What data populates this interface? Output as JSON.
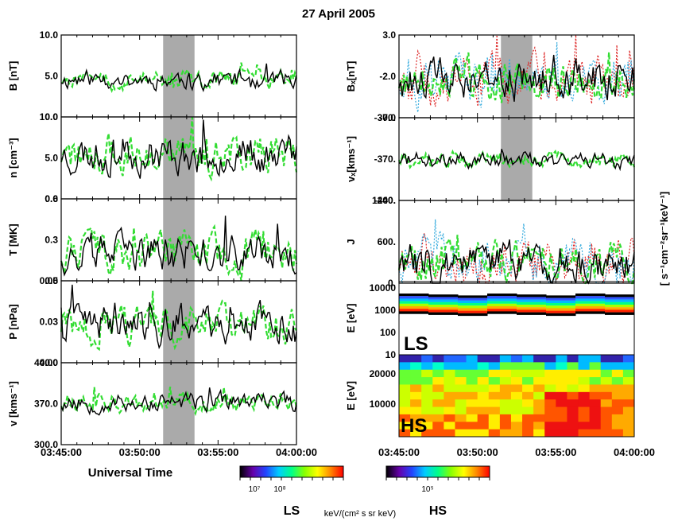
{
  "title": "27 April 2005",
  "time_ticks": [
    "03:45:00",
    "03:50:00",
    "03:55:00",
    "04:00:00"
  ],
  "xlabel": "Universal Time",
  "shade_range": [
    "03:51:30",
    "03:53:30"
  ],
  "left_panels": [
    {
      "ylabel": "B [nT]",
      "ticks": [
        "10.0",
        "5.0",
        "0.0"
      ],
      "ylim": [
        0,
        10
      ],
      "base": 4.6,
      "amp": 1.0,
      "seed": 11
    },
    {
      "ylabel": "n [cm⁻³]",
      "ticks": [
        "10.0",
        "5.0",
        "0.0"
      ],
      "ylim": [
        0,
        10
      ],
      "base": 5.4,
      "amp": 2.0,
      "seed": 23
    },
    {
      "ylabel": "T [MK]",
      "ticks": [
        "0.6",
        "0.3",
        "0.0"
      ],
      "ylim": [
        0,
        0.6
      ],
      "base": 0.2,
      "amp": 0.12,
      "seed": 37
    },
    {
      "ylabel": "P [nPa]",
      "ticks": [
        "0.05",
        "0.03",
        "0.00"
      ],
      "ylim": [
        -0.01,
        0.05
      ],
      "base": 0.018,
      "amp": 0.012,
      "seed": 41
    },
    {
      "ylabel": "v [kms⁻¹]",
      "ticks": [
        "440.0",
        "370.0",
        "300.0"
      ],
      "ylim": [
        300,
        440
      ],
      "base": 372,
      "amp": 14,
      "seed": 53
    }
  ],
  "right_panels": [
    {
      "ylabel": "Bₓ[nT]",
      "ticks": [
        "3.0",
        "-2.0",
        "-7.0"
      ],
      "ylim": [
        -7,
        3
      ],
      "base": -2.5,
      "amp": 2.2,
      "seed": 61
    },
    {
      "ylabel": "vₓ[kms⁻¹]",
      "ticks": [
        "-300.",
        "-370.",
        "-440."
      ],
      "ylim": [
        -440,
        -300
      ],
      "base": -372,
      "amp": 12,
      "seed": 71
    },
    {
      "ylabel": "J",
      "ticks": [
        "1200.",
        "600.",
        "0."
      ],
      "ylim": [
        0,
        1200
      ],
      "base": 300,
      "amp": 260,
      "seed": 83
    }
  ],
  "j_units": "[ s⁻¹cm⁻²sr⁻¹keV⁻¹]",
  "spec_ls": {
    "ylabel": "E [eV]",
    "ticks": [
      "10000",
      "1000",
      "100",
      "10"
    ],
    "label": "LS"
  },
  "spec_hs": {
    "ylabel": "E [eV]",
    "ticks": [
      "20000",
      "10000"
    ],
    "label": "HS"
  },
  "colorbar_ls": {
    "ticks": [
      "10⁷",
      "10⁸"
    ],
    "label": "LS"
  },
  "colorbar_hs": {
    "ticks": [
      "10⁵"
    ],
    "label": "HS"
  },
  "colorbar_units": "keV/(cm² s sr keV)",
  "colors": {
    "black": "#000000",
    "green": "#33dd33",
    "red": "#dd2222",
    "blue": "#33aadd",
    "shade": "#aaaaaa"
  }
}
